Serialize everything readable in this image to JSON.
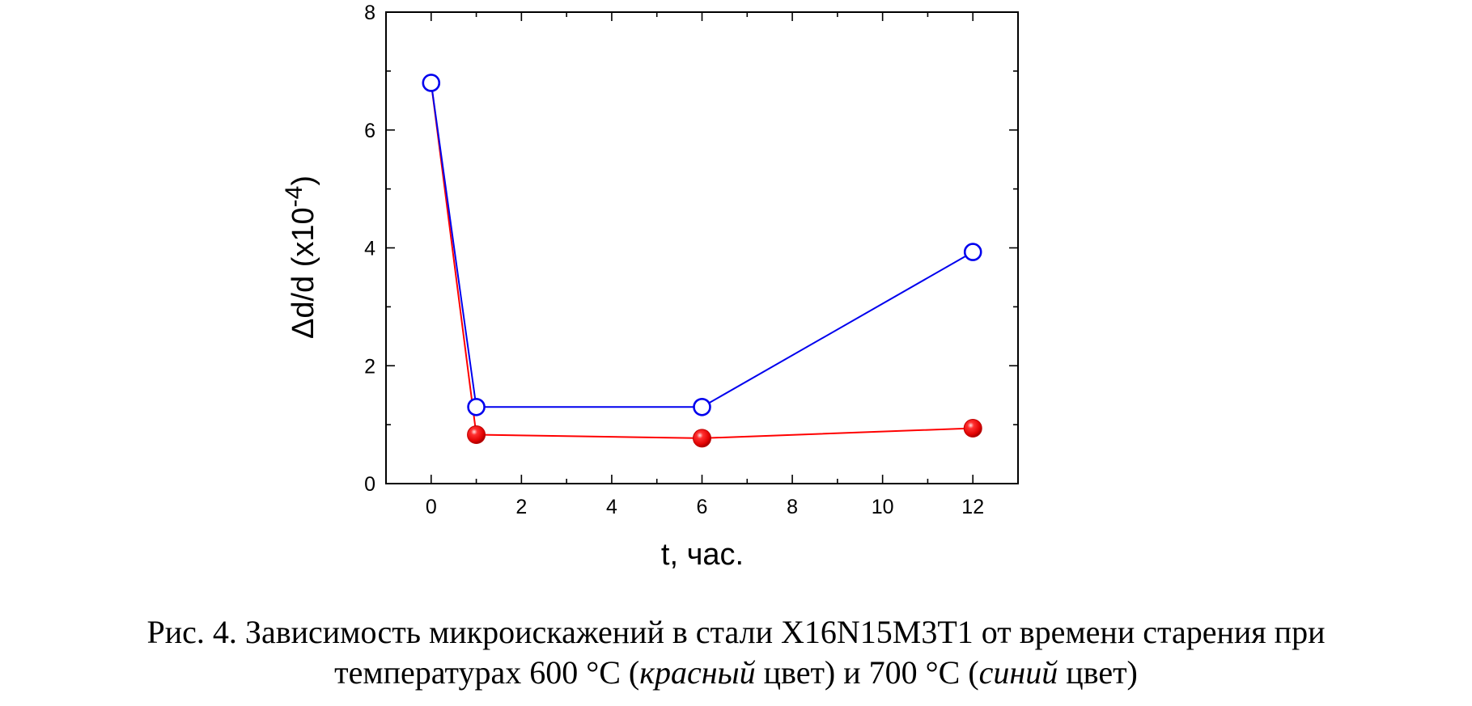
{
  "chart_data": {
    "type": "line",
    "xlabel": "t, час.",
    "ylabel": "Δd/d (x10",
    "ylabel_exp": "-4",
    "ylabel_close": ")",
    "xlim": [
      -1,
      13
    ],
    "ylim": [
      0,
      8
    ],
    "xticks": [
      0,
      2,
      4,
      6,
      8,
      10,
      12
    ],
    "yticks": [
      0,
      2,
      4,
      6,
      8
    ],
    "grid": false,
    "series": [
      {
        "color": "#ff0000",
        "marker": "filled-sphere",
        "points": [
          {
            "x": 0,
            "y": 6.8
          },
          {
            "x": 1,
            "y": 0.83
          },
          {
            "x": 6,
            "y": 0.77
          },
          {
            "x": 12,
            "y": 0.94
          }
        ],
        "marker_points": [
          1,
          2,
          3
        ]
      },
      {
        "color": "#0000ee",
        "marker": "open-circle",
        "points": [
          {
            "x": 0,
            "y": 6.8
          },
          {
            "x": 1,
            "y": 1.3
          },
          {
            "x": 6,
            "y": 1.3
          },
          {
            "x": 12,
            "y": 3.93
          }
        ],
        "marker_points": [
          0,
          1,
          2,
          3
        ]
      }
    ]
  },
  "caption": {
    "line1": "Рис. 4. Зависимость микроискажений в стали X16N15M3T1 от времени старения при",
    "line2_a": "температурах 600 °С (",
    "line2_b": "красный",
    "line2_c": " цвет) и 700 °С (",
    "line2_d": "синий",
    "line2_e": " цвет)"
  }
}
